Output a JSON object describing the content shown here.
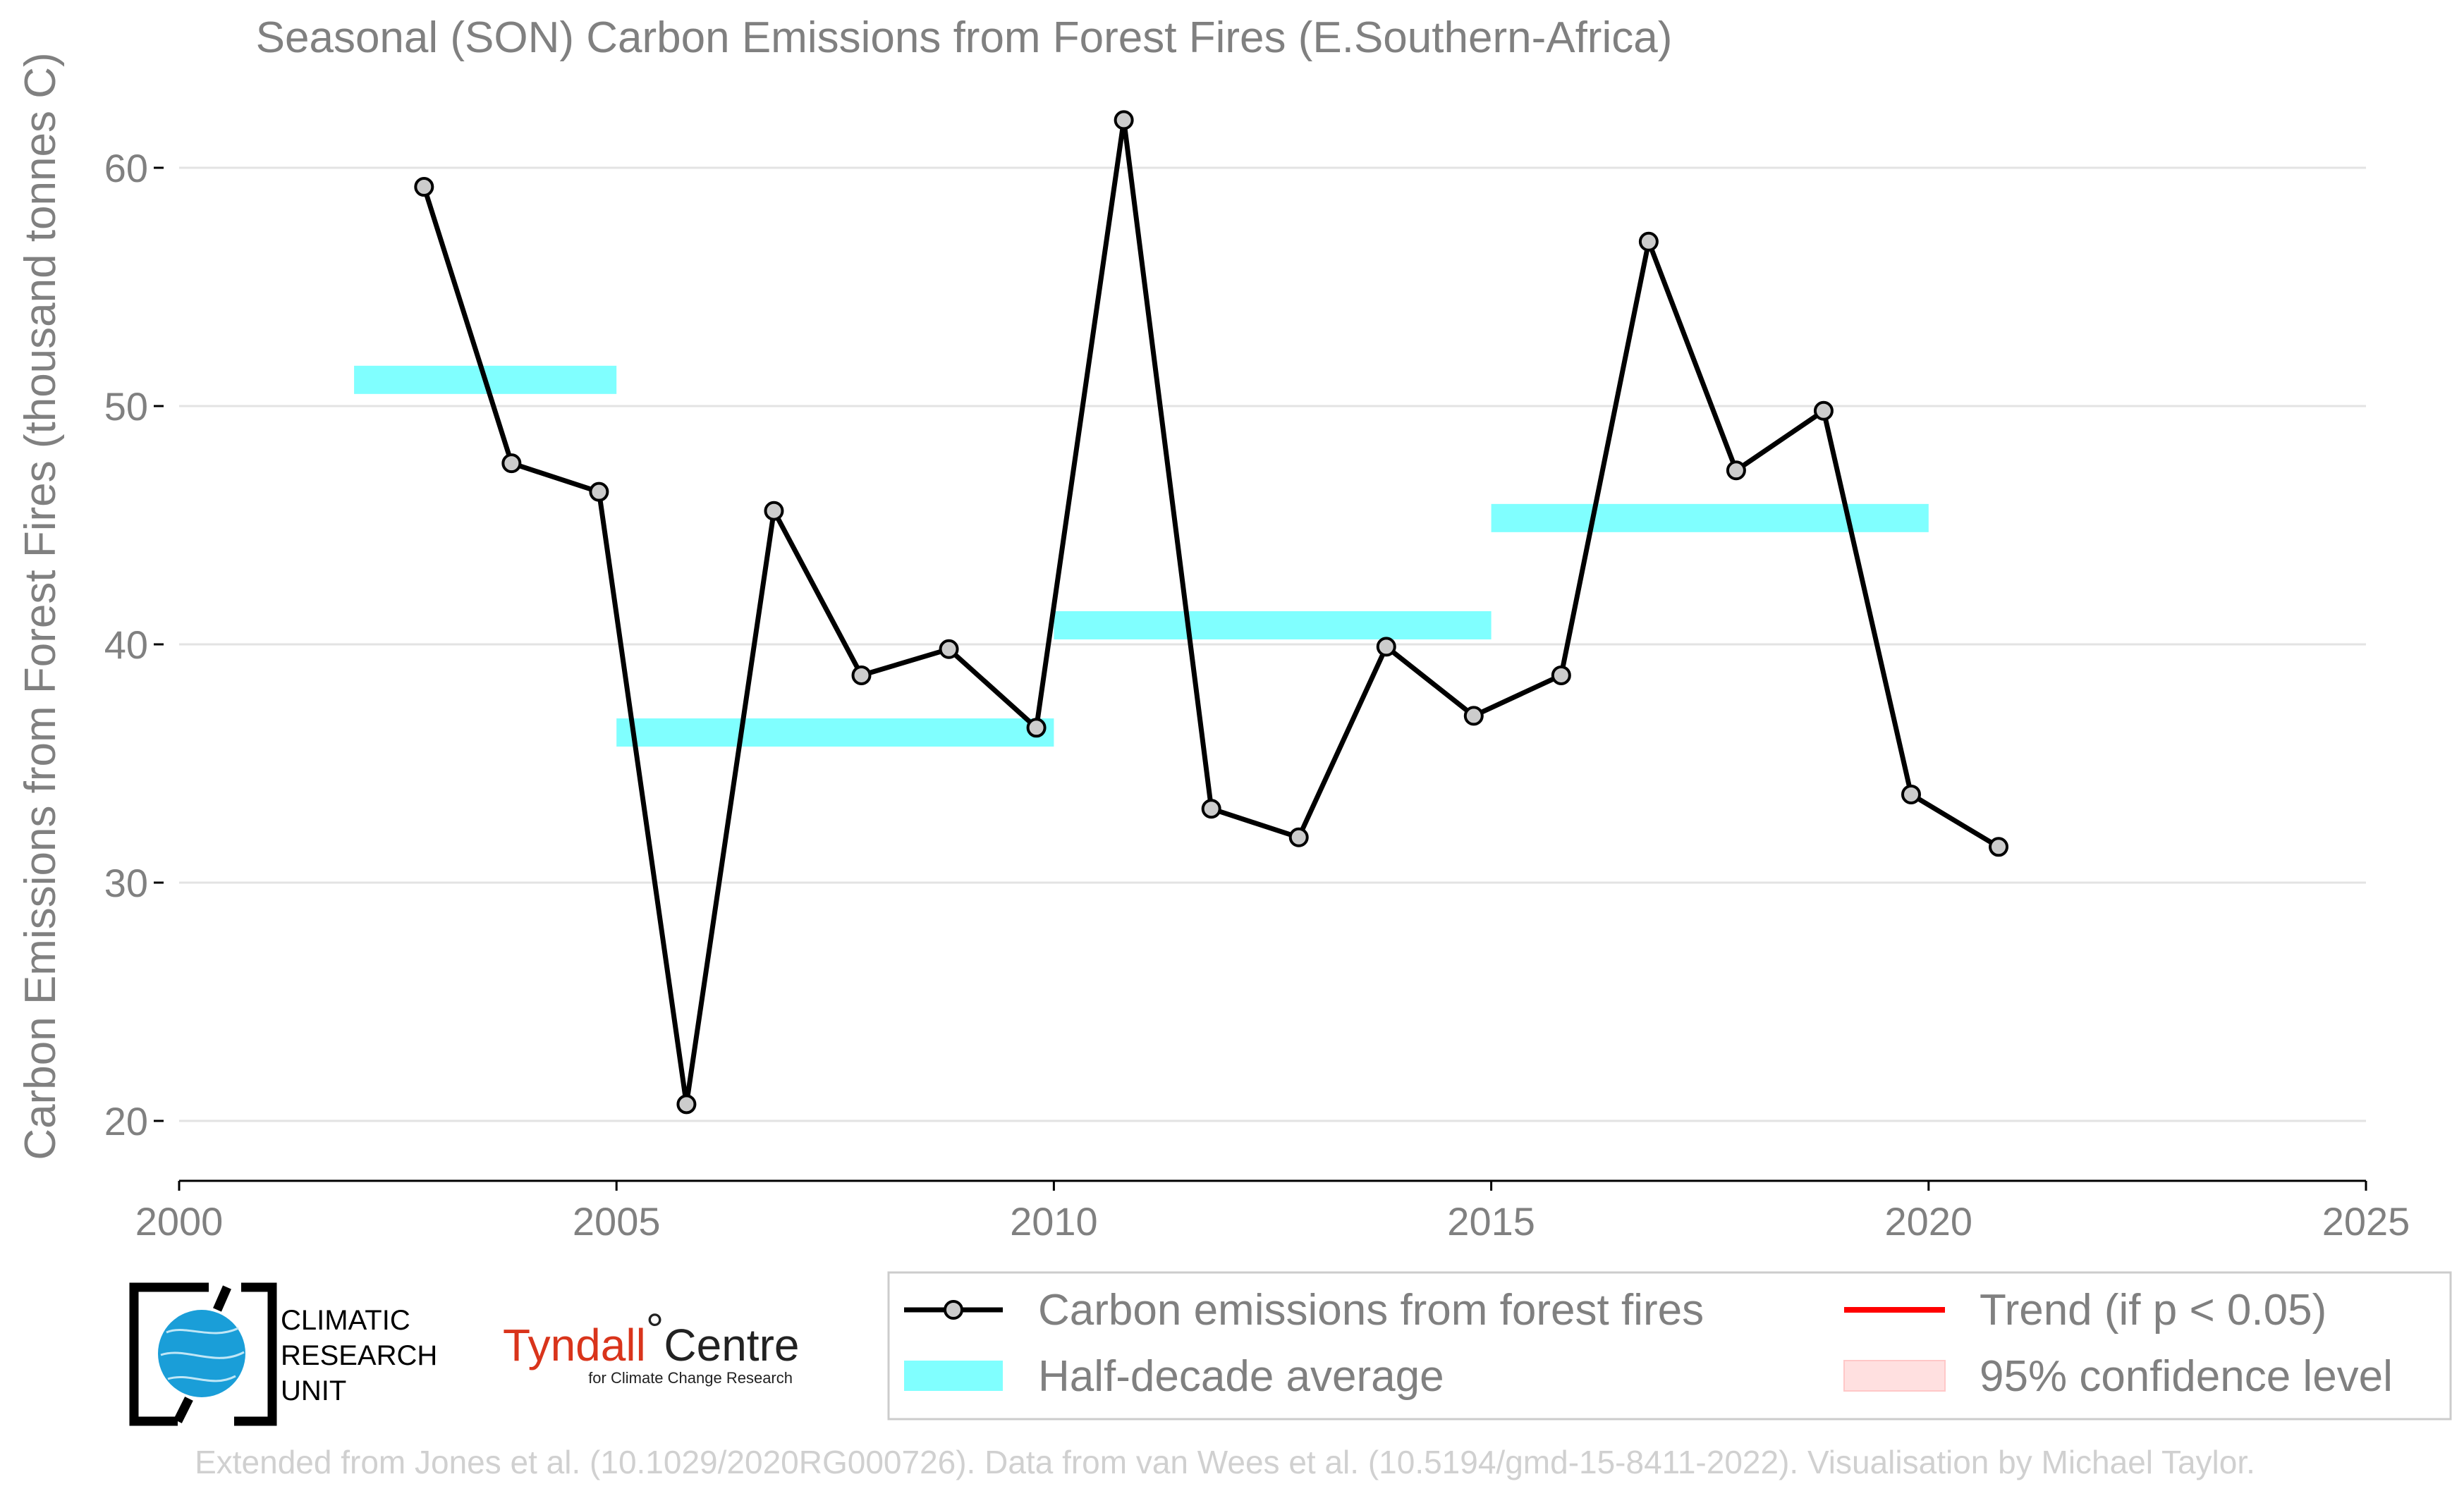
{
  "chart_data": {
    "type": "line",
    "title": "Seasonal (SON) Carbon Emissions from Forest Fires (E.Southern-Africa)",
    "xlabel": "",
    "ylabel": "Carbon Emissions from Forest Fires (thousand tonnes C)",
    "xlim": [
      2000,
      2025
    ],
    "ylim": [
      19,
      64
    ],
    "xticks": [
      2000,
      2005,
      2010,
      2015,
      2020,
      2025
    ],
    "yticks": [
      20,
      30,
      40,
      50,
      60
    ],
    "grid": "horizontal",
    "legend_position": "bottom-right",
    "series": [
      {
        "name": "Carbon emissions from forest fires",
        "color": "#000000",
        "marker_color": "#cccccc",
        "x": [
          2002.8,
          2003.8,
          2004.8,
          2005.8,
          2006.8,
          2007.8,
          2008.8,
          2009.8,
          2010.8,
          2011.8,
          2012.8,
          2013.8,
          2014.8,
          2015.8,
          2016.8,
          2017.8,
          2018.8,
          2019.8,
          2020.8
        ],
        "y": [
          59.2,
          47.6,
          46.4,
          20.7,
          45.6,
          38.7,
          39.8,
          36.5,
          62.0,
          33.1,
          31.9,
          39.9,
          37.0,
          38.7,
          56.9,
          47.3,
          49.8,
          33.7,
          31.5
        ]
      },
      {
        "name": "Half-decade average",
        "color": "#80ffff",
        "segments": [
          {
            "x0": 2002,
            "x1": 2005,
            "y": 51.1
          },
          {
            "x0": 2005,
            "x1": 2010,
            "y": 36.3
          },
          {
            "x0": 2010,
            "x1": 2015,
            "y": 40.8
          },
          {
            "x0": 2015,
            "x1": 2020,
            "y": 45.3
          }
        ]
      }
    ],
    "legend": [
      {
        "label": "Carbon emissions from forest fires",
        "symbol": "line-marker",
        "color": "#000000"
      },
      {
        "label": "Trend (if p < 0.05)",
        "symbol": "line",
        "color": "#ff0000"
      },
      {
        "label": "Half-decade average",
        "symbol": "patch",
        "color": "#80ffff"
      },
      {
        "label": "95% confidence level",
        "symbol": "patch",
        "color": "#ffe0e0"
      }
    ]
  },
  "logos": {
    "cru_text": [
      "CLIMATIC",
      "RESEARCH",
      "UNIT"
    ],
    "tyndall_main": "Tyndall",
    "tyndall_degree": "°",
    "tyndall_centre": "Centre",
    "tyndall_sub": "for Climate Change Research"
  },
  "credit": "Extended from Jones et al. (10.1029/2020RG000726). Data from van Wees et al. (10.5194/gmd-15-8411-2022). Visualisation by Michael Taylor."
}
